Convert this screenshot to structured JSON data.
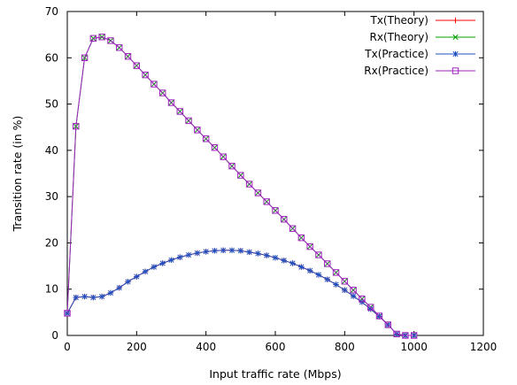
{
  "chart_data": {
    "type": "line",
    "title": "",
    "xlabel": "Input traffic rate (Mbps)",
    "ylabel": "Transition rate (in %)",
    "xlim": [
      0,
      1200
    ],
    "ylim": [
      0,
      70
    ],
    "xticks": [
      0,
      200,
      400,
      600,
      800,
      1000,
      1200
    ],
    "yticks": [
      0,
      10,
      20,
      30,
      40,
      50,
      60,
      70
    ],
    "grid": false,
    "legend_position": "top-right",
    "x": [
      0,
      25,
      50,
      75,
      100,
      125,
      150,
      175,
      200,
      225,
      250,
      275,
      300,
      325,
      350,
      375,
      400,
      425,
      450,
      475,
      500,
      525,
      550,
      575,
      600,
      625,
      650,
      675,
      700,
      725,
      750,
      775,
      800,
      825,
      850,
      875,
      900,
      925,
      950,
      975,
      1000
    ],
    "series": [
      {
        "name": "Tx(Theory)",
        "color": "#ff0000",
        "marker": "plus",
        "values": [
          4.8,
          8.2,
          8.4,
          8.2,
          8.4,
          9.2,
          10.3,
          11.6,
          12.7,
          13.8,
          14.8,
          15.6,
          16.3,
          16.9,
          17.4,
          17.8,
          18.1,
          18.3,
          18.4,
          18.4,
          18.3,
          18.0,
          17.7,
          17.3,
          16.8,
          16.2,
          15.6,
          14.8,
          14.0,
          13.1,
          12.1,
          11.0,
          9.8,
          8.5,
          7.2,
          5.7,
          4.1,
          2.3,
          0.3,
          0.0,
          0.0
        ]
      },
      {
        "name": "Rx(Theory)",
        "color": "#00a000",
        "marker": "cross",
        "values": [
          4.8,
          45.2,
          60.0,
          64.2,
          64.5,
          63.7,
          62.2,
          60.3,
          58.3,
          56.3,
          54.3,
          52.4,
          50.3,
          48.4,
          46.4,
          44.4,
          42.5,
          40.6,
          38.6,
          36.6,
          34.6,
          32.7,
          30.8,
          28.9,
          27.0,
          25.1,
          23.1,
          21.1,
          19.2,
          17.4,
          15.5,
          13.6,
          11.7,
          9.8,
          7.9,
          6.1,
          4.2,
          2.3,
          0.3,
          0.0,
          0.0
        ]
      },
      {
        "name": "Tx(Practice)",
        "color": "#2050c0",
        "marker": "star",
        "values": [
          4.8,
          8.2,
          8.4,
          8.2,
          8.4,
          9.2,
          10.3,
          11.6,
          12.7,
          13.8,
          14.8,
          15.6,
          16.3,
          16.9,
          17.4,
          17.8,
          18.1,
          18.3,
          18.4,
          18.4,
          18.3,
          18.0,
          17.7,
          17.3,
          16.8,
          16.2,
          15.6,
          14.8,
          14.0,
          13.1,
          12.1,
          11.0,
          9.8,
          8.5,
          7.2,
          5.7,
          4.1,
          2.3,
          0.3,
          0.0,
          0.0
        ]
      },
      {
        "name": "Rx(Practice)",
        "color": "#a020c0",
        "marker": "square",
        "values": [
          4.8,
          45.2,
          60.0,
          64.2,
          64.5,
          63.7,
          62.2,
          60.3,
          58.3,
          56.3,
          54.3,
          52.4,
          50.3,
          48.4,
          46.4,
          44.4,
          42.5,
          40.6,
          38.6,
          36.6,
          34.6,
          32.7,
          30.8,
          28.9,
          27.0,
          25.1,
          23.1,
          21.1,
          19.2,
          17.4,
          15.5,
          13.6,
          11.7,
          9.8,
          7.9,
          6.1,
          4.2,
          2.3,
          0.3,
          0.0,
          0.0
        ]
      }
    ]
  }
}
